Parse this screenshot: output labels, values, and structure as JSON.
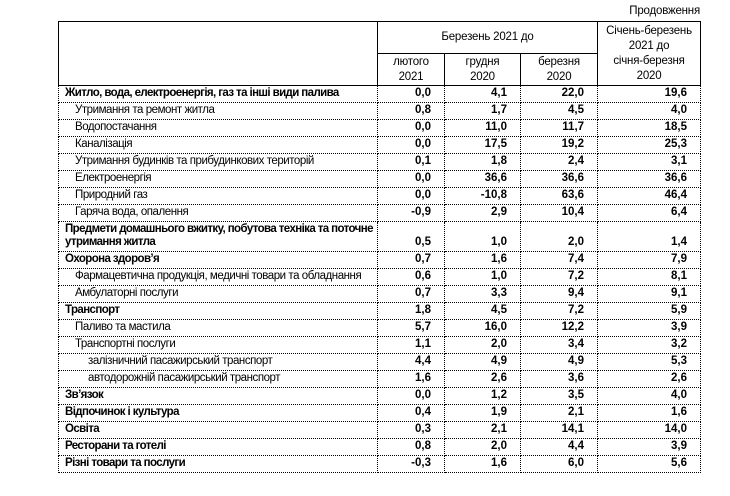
{
  "page": {
    "continuation_label": "Продовження"
  },
  "table": {
    "header": {
      "group_title": "Березень 2021 до",
      "sub_columns": [
        "лютого\n2021",
        "грудня\n2020",
        "березня\n2020"
      ],
      "last_column": "Січень-березень\n2021 до\nсічня-березня\n2020"
    },
    "rows": [
      {
        "label": "Житло, вода, електроенергія, газ та інші види палива",
        "bold": true,
        "indent": 0,
        "twoLine": false,
        "values": [
          "0,0",
          "4,1",
          "22,0",
          "19,6"
        ]
      },
      {
        "label": "Утримання та ремонт житла",
        "bold": false,
        "indent": 1,
        "twoLine": false,
        "values": [
          "0,8",
          "1,7",
          "4,5",
          "4,0"
        ]
      },
      {
        "label": "Водопостачання",
        "bold": false,
        "indent": 1,
        "twoLine": false,
        "values": [
          "0,0",
          "11,0",
          "11,7",
          "18,5"
        ]
      },
      {
        "label": "Каналізація",
        "bold": false,
        "indent": 1,
        "twoLine": false,
        "values": [
          "0,0",
          "17,5",
          "19,2",
          "25,3"
        ]
      },
      {
        "label": "Утримання будинків та прибудинкових територій",
        "bold": false,
        "indent": 1,
        "twoLine": false,
        "values": [
          "0,1",
          "1,8",
          "2,4",
          "3,1"
        ]
      },
      {
        "label": "Електроенергія",
        "bold": false,
        "indent": 1,
        "twoLine": false,
        "values": [
          "0,0",
          "36,6",
          "36,6",
          "36,6"
        ]
      },
      {
        "label": "Природний газ",
        "bold": false,
        "indent": 1,
        "twoLine": false,
        "values": [
          "0,0",
          "-10,8",
          "63,6",
          "46,4"
        ]
      },
      {
        "label": "Гаряча вода, опалення",
        "bold": false,
        "indent": 1,
        "twoLine": false,
        "values": [
          "-0,9",
          "2,9",
          "10,4",
          "6,4"
        ]
      },
      {
        "label": "Предмети домашнього вжитку, побутова техніка та поточне утримання житла",
        "bold": true,
        "indent": 0,
        "twoLine": true,
        "values": [
          "0,5",
          "1,0",
          "2,0",
          "1,4"
        ]
      },
      {
        "label": "Охорона здоров’я",
        "bold": true,
        "indent": 0,
        "twoLine": false,
        "values": [
          "0,7",
          "1,6",
          "7,4",
          "7,9"
        ]
      },
      {
        "label": "Фармацевтична продукція, медичні товари та обладнання",
        "bold": false,
        "indent": 1,
        "twoLine": true,
        "values": [
          "0,6",
          "1,0",
          "7,2",
          "8,1"
        ]
      },
      {
        "label": "Амбулаторні послуги",
        "bold": false,
        "indent": 1,
        "twoLine": false,
        "values": [
          "0,7",
          "3,3",
          "9,4",
          "9,1"
        ]
      },
      {
        "label": "Транспорт",
        "bold": true,
        "indent": 0,
        "twoLine": false,
        "values": [
          "1,8",
          "4,5",
          "7,2",
          "5,9"
        ]
      },
      {
        "label": "Паливо та мастила",
        "bold": false,
        "indent": 1,
        "twoLine": false,
        "values": [
          "5,7",
          "16,0",
          "12,2",
          "3,9"
        ]
      },
      {
        "label": "Транспортні послуги",
        "bold": false,
        "indent": 1,
        "twoLine": false,
        "values": [
          "1,1",
          "2,0",
          "3,4",
          "3,2"
        ]
      },
      {
        "label": "залізничний пасажирський транспорт",
        "bold": false,
        "indent": 2,
        "twoLine": false,
        "values": [
          "4,4",
          "4,9",
          "4,9",
          "5,3"
        ]
      },
      {
        "label": "автодорожній пасажирський транспорт",
        "bold": false,
        "indent": 2,
        "twoLine": false,
        "values": [
          "1,6",
          "2,6",
          "3,6",
          "2,6"
        ]
      },
      {
        "label": "Зв’язок",
        "bold": true,
        "indent": 0,
        "twoLine": false,
        "values": [
          "0,0",
          "1,2",
          "3,5",
          "4,0"
        ]
      },
      {
        "label": "Відпочинок і культура",
        "bold": true,
        "indent": 0,
        "twoLine": false,
        "values": [
          "0,4",
          "1,9",
          "2,1",
          "1,6"
        ]
      },
      {
        "label": "Освіта",
        "bold": true,
        "indent": 0,
        "twoLine": false,
        "values": [
          "0,3",
          "2,1",
          "14,1",
          "14,0"
        ]
      },
      {
        "label": "Ресторани та готелі",
        "bold": true,
        "indent": 0,
        "twoLine": false,
        "values": [
          "0,8",
          "2,0",
          "4,4",
          "3,9"
        ]
      },
      {
        "label": "Різні товари та послуги",
        "bold": true,
        "indent": 0,
        "twoLine": false,
        "values": [
          "-0,3",
          "1,6",
          "6,0",
          "5,6"
        ]
      }
    ]
  }
}
